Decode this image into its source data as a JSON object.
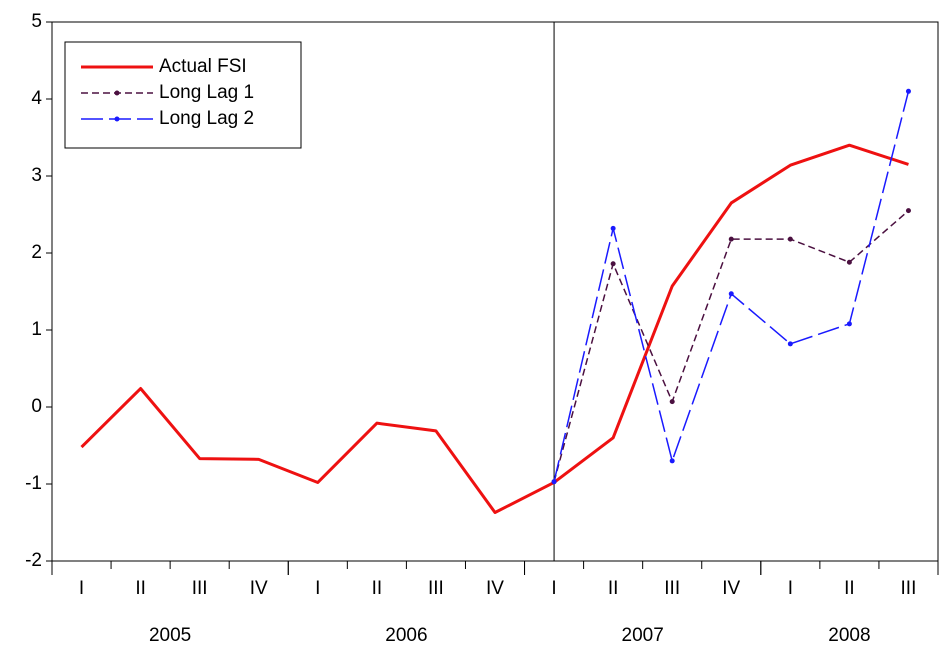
{
  "chart_data": {
    "type": "line",
    "categories": [
      "I",
      "II",
      "III",
      "IV",
      "I",
      "II",
      "III",
      "IV",
      "I",
      "II",
      "III",
      "IV",
      "I",
      "II",
      "III"
    ],
    "groups": [
      {
        "label": "2005",
        "size": 4
      },
      {
        "label": "2006",
        "size": 4
      },
      {
        "label": "2007",
        "size": 4
      },
      {
        "label": "2008",
        "size": 3
      }
    ],
    "vline": 8,
    "series": [
      {
        "name": "Actual FSI",
        "color": "#ee1111",
        "style": "solid",
        "markers": false,
        "values": [
          -0.52,
          0.24,
          -0.67,
          -0.68,
          -0.98,
          -0.21,
          -0.31,
          -1.37,
          -0.98,
          -0.4,
          1.57,
          2.65,
          3.14,
          3.4,
          3.15
        ]
      },
      {
        "name": "Long Lag 1",
        "color": "#4b1040",
        "style": "dashed",
        "markers": true,
        "values": [
          null,
          null,
          null,
          null,
          null,
          null,
          null,
          null,
          -0.97,
          1.86,
          0.07,
          2.18,
          2.18,
          1.88,
          2.55
        ]
      },
      {
        "name": "Long Lag 2",
        "color": "#1a1aff",
        "style": "longdash",
        "markers": true,
        "values": [
          null,
          null,
          null,
          null,
          null,
          null,
          null,
          null,
          -0.97,
          2.32,
          -0.7,
          1.47,
          0.82,
          1.08,
          4.1
        ]
      }
    ],
    "ylim": [
      -2,
      5
    ],
    "yticks": [
      -2,
      -1,
      0,
      1,
      2,
      3,
      4,
      5
    ],
    "grid": false,
    "legend": "upper left"
  }
}
